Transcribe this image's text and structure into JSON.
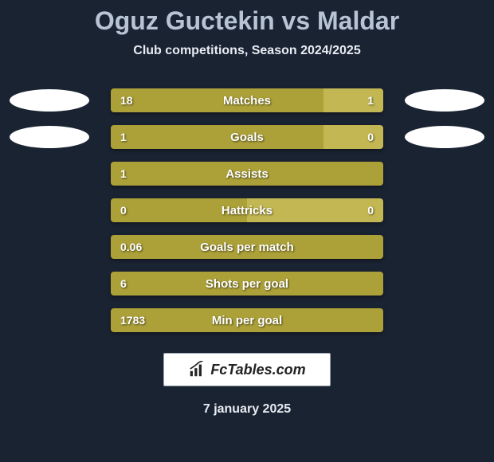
{
  "title": "Oguz Guctekin vs Maldar",
  "subtitle": "Club competitions, Season 2024/2025",
  "date": "7 january 2025",
  "footer_label": "FcTables.com",
  "colors": {
    "bg": "#1a2332",
    "seg_left": "#aca038",
    "seg_right": "#c2b752",
    "badge": "#ffffff",
    "title": "#b8c4d4",
    "text": "#e8ecf2"
  },
  "bars": [
    {
      "label": "Matches",
      "left_val": "18",
      "right_val": "1",
      "left_pct": 78,
      "right_pct": 22,
      "show_left_badge": true,
      "show_right_badge": true,
      "show_right_val": true
    },
    {
      "label": "Goals",
      "left_val": "1",
      "right_val": "0",
      "left_pct": 78,
      "right_pct": 22,
      "show_left_badge": true,
      "show_right_badge": true,
      "show_right_val": true
    },
    {
      "label": "Assists",
      "left_val": "1",
      "right_val": "",
      "left_pct": 100,
      "right_pct": 0,
      "show_left_badge": false,
      "show_right_badge": false,
      "show_right_val": false
    },
    {
      "label": "Hattricks",
      "left_val": "0",
      "right_val": "0",
      "left_pct": 50,
      "right_pct": 50,
      "show_left_badge": false,
      "show_right_badge": false,
      "show_right_val": true
    },
    {
      "label": "Goals per match",
      "left_val": "0.06",
      "right_val": "",
      "left_pct": 100,
      "right_pct": 0,
      "show_left_badge": false,
      "show_right_badge": false,
      "show_right_val": false
    },
    {
      "label": "Shots per goal",
      "left_val": "6",
      "right_val": "",
      "left_pct": 100,
      "right_pct": 0,
      "show_left_badge": false,
      "show_right_badge": false,
      "show_right_val": false
    },
    {
      "label": "Min per goal",
      "left_val": "1783",
      "right_val": "",
      "left_pct": 100,
      "right_pct": 0,
      "show_left_badge": false,
      "show_right_badge": false,
      "show_right_val": false
    }
  ]
}
